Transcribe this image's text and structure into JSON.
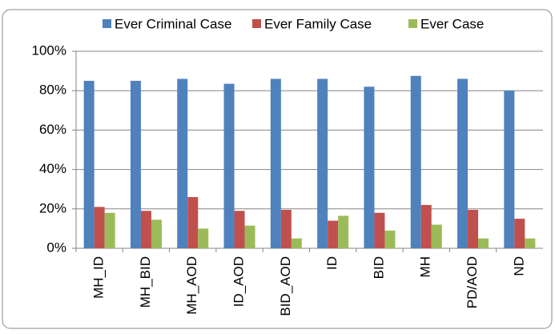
{
  "chart_data": {
    "type": "bar",
    "categories": [
      "MH_ID",
      "MH_BID",
      "MH_AOD",
      "ID_AOD",
      "BID_AOD",
      "ID",
      "BID",
      "MH",
      "PD/AOD",
      "ND"
    ],
    "series": [
      {
        "name": "Ever Criminal Case",
        "color": "#4f81bd",
        "values": [
          85,
          85,
          86,
          83.5,
          86,
          86,
          82,
          87.5,
          86,
          80
        ]
      },
      {
        "name": "Ever Family Case",
        "color": "#c0504d",
        "values": [
          21,
          19,
          26,
          19,
          19.5,
          14,
          18,
          22,
          19.5,
          15
        ]
      },
      {
        "name": "Ever Case",
        "color": "#9bbb59",
        "values": [
          18,
          14.5,
          10,
          11.5,
          5,
          16.5,
          9,
          12,
          5,
          5
        ]
      }
    ],
    "ylim": [
      0,
      100
    ],
    "yticks": [
      {
        "value": 0,
        "label": "0%"
      },
      {
        "value": 20,
        "label": "20%"
      },
      {
        "value": 40,
        "label": "40%"
      },
      {
        "value": 60,
        "label": "60%"
      },
      {
        "value": 80,
        "label": "80%"
      },
      {
        "value": 100,
        "label": "100%"
      }
    ],
    "grid": true,
    "legend": "top"
  }
}
